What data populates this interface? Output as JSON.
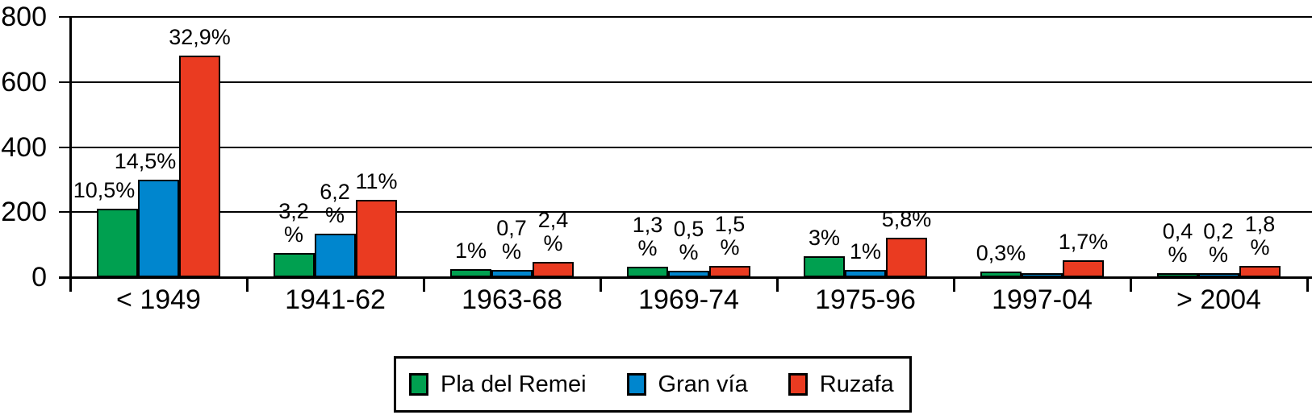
{
  "chart_data": {
    "type": "bar",
    "title": "",
    "xlabel": "",
    "ylabel": "",
    "categories": [
      "< 1949",
      "1941-62",
      "1963-68",
      "1969-74",
      "1975-96",
      "1997-04",
      "> 2004"
    ],
    "series": [
      {
        "name": "Pla del Remei",
        "color": "#00A050",
        "values": [
          210,
          74,
          25,
          32,
          64,
          17,
          12
        ],
        "labels": [
          "10,5%",
          "3,2\n%",
          "1%",
          "1,3\n%",
          "3%",
          "0,3%",
          "0,4\n%"
        ]
      },
      {
        "name": "Gran vía",
        "color": "#0086CE",
        "values": [
          300,
          133,
          22,
          20,
          22,
          10,
          10
        ],
        "labels": [
          "14,5%",
          "6,2\n%",
          "0,7\n%",
          "0,5\n%",
          "1%",
          "",
          "0,2\n%"
        ]
      },
      {
        "name": "Ruzafa",
        "color": "#EA3B21",
        "values": [
          680,
          238,
          47,
          34,
          121,
          52,
          35
        ],
        "labels": [
          "32,9%",
          "11%",
          "2,4\n%",
          "1,5\n%",
          "5,8%",
          "1,7%",
          "1,8\n%"
        ]
      }
    ],
    "ylim": [
      0,
      800
    ],
    "yticks": [
      0,
      200,
      400,
      600,
      800
    ],
    "grid": "horizontal",
    "legend_position": "bottom-center",
    "axis_color": "#000000",
    "background": "#FFFFFF"
  }
}
